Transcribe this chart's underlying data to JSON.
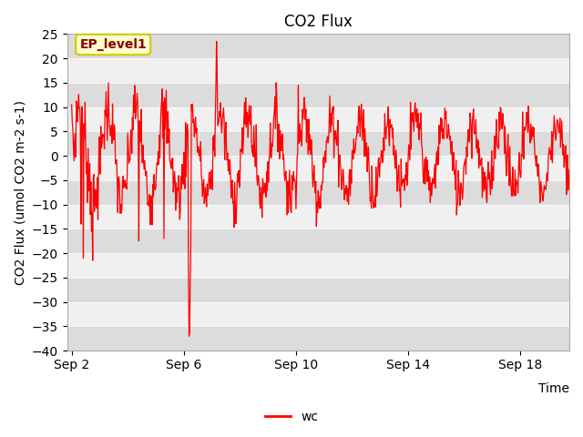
{
  "title": "CO2 Flux",
  "xlabel": "Time",
  "ylabel": "CO2 Flux (umol CO2 m-2 s-1)",
  "ylim": [
    -40,
    25
  ],
  "yticks": [
    -40,
    -35,
    -30,
    -25,
    -20,
    -15,
    -10,
    -5,
    0,
    5,
    10,
    15,
    20,
    25
  ],
  "xtick_labels": [
    "Sep 2",
    "Sep 6",
    "Sep 10",
    "Sep 14",
    "Sep 18"
  ],
  "line_color": "#FF0000",
  "line_width": 0.9,
  "line_label": "wc",
  "annotation_text": "EP_level1",
  "annotation_bg": "#FFFFCC",
  "annotation_border": "#CCCC00",
  "bg_color_dark": "#DCDCDC",
  "bg_color_light": "#F0F0F0",
  "title_fontsize": 12,
  "axis_fontsize": 10,
  "tick_fontsize": 10,
  "legend_fontsize": 10,
  "annotation_fontsize": 10
}
